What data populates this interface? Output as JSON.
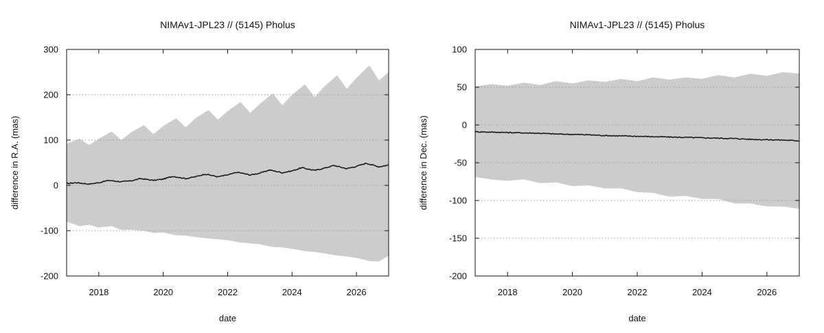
{
  "chart_data": [
    {
      "type": "area",
      "title": "NIMAv1-JPL23 // (5145) Pholus",
      "xlabel": "date",
      "ylabel": "difference in R.A. (mas)",
      "xlim": [
        2017.0,
        2027.0
      ],
      "ylim": [
        -200,
        300
      ],
      "xticks": [
        2018,
        2020,
        2022,
        2024,
        2026
      ],
      "yticks": [
        -200,
        -100,
        0,
        100,
        200,
        300
      ],
      "grid": "horizontal dotted",
      "series": [
        {
          "kind": "uncertainty-band",
          "x": [
            2017.0,
            2017.4,
            2017.7,
            2018.0,
            2018.4,
            2018.7,
            2019.0,
            2019.4,
            2019.7,
            2020.0,
            2020.4,
            2020.7,
            2021.0,
            2021.4,
            2021.7,
            2022.0,
            2022.4,
            2022.7,
            2023.0,
            2023.4,
            2023.7,
            2024.0,
            2024.4,
            2024.7,
            2025.0,
            2025.4,
            2025.7,
            2026.0,
            2026.4,
            2026.7,
            2027.0
          ],
          "upper": [
            92,
            103,
            89,
            103,
            119,
            100,
            117,
            133,
            113,
            131,
            148,
            128,
            148,
            166,
            145,
            164,
            184,
            160,
            180,
            203,
            177,
            200,
            223,
            195,
            218,
            243,
            213,
            237,
            265,
            232,
            250
          ],
          "lower": [
            -80,
            -90,
            -87,
            -93,
            -90,
            -98,
            -98,
            -100,
            -105,
            -104,
            -110,
            -111,
            -114,
            -117,
            -119,
            -121,
            -126,
            -128,
            -130,
            -136,
            -137,
            -140,
            -145,
            -147,
            -150,
            -155,
            -157,
            -160,
            -167,
            -168,
            -155
          ]
        },
        {
          "kind": "mean",
          "x": [
            2017.0,
            2017.3,
            2017.7,
            2018.0,
            2018.3,
            2018.7,
            2019.0,
            2019.3,
            2019.7,
            2020.0,
            2020.3,
            2020.7,
            2021.0,
            2021.3,
            2021.7,
            2022.0,
            2022.3,
            2022.7,
            2023.0,
            2023.3,
            2023.7,
            2024.0,
            2024.3,
            2024.7,
            2025.0,
            2025.3,
            2025.7,
            2026.0,
            2026.3,
            2026.7,
            2027.0
          ],
          "values": [
            4,
            6,
            3,
            6,
            11,
            8,
            10,
            15,
            11,
            14,
            20,
            15,
            19,
            25,
            19,
            23,
            29,
            23,
            27,
            34,
            28,
            32,
            39,
            33,
            38,
            44,
            37,
            42,
            49,
            41,
            45
          ]
        }
      ]
    },
    {
      "type": "area",
      "title": "NIMAv1-JPL23 // (5145) Pholus",
      "xlabel": "date",
      "ylabel": "difference in Dec. (mas)",
      "xlim": [
        2017.0,
        2027.0
      ],
      "ylim": [
        -200,
        100
      ],
      "xticks": [
        2018,
        2020,
        2022,
        2024,
        2026
      ],
      "yticks": [
        -200,
        -150,
        -100,
        -50,
        0,
        50,
        100
      ],
      "grid": "horizontal dotted",
      "series": [
        {
          "kind": "uncertainty-band",
          "x": [
            2017.0,
            2017.5,
            2018.0,
            2018.5,
            2019.0,
            2019.5,
            2020.0,
            2020.5,
            2021.0,
            2021.5,
            2022.0,
            2022.5,
            2023.0,
            2023.5,
            2024.0,
            2024.5,
            2025.0,
            2025.5,
            2026.0,
            2026.5,
            2027.0
          ],
          "upper": [
            51,
            54,
            52,
            56,
            53,
            58,
            55,
            59,
            57,
            61,
            58,
            63,
            60,
            63,
            61,
            66,
            63,
            68,
            65,
            70,
            68
          ],
          "lower": [
            -69,
            -72,
            -74,
            -72,
            -77,
            -76,
            -81,
            -80,
            -84,
            -84,
            -89,
            -90,
            -95,
            -94,
            -98,
            -98,
            -104,
            -104,
            -108,
            -108,
            -111
          ]
        },
        {
          "kind": "mean",
          "x": [
            2017.0,
            2017.5,
            2018.0,
            2018.5,
            2019.0,
            2019.5,
            2020.0,
            2020.5,
            2021.0,
            2021.5,
            2022.0,
            2022.5,
            2023.0,
            2023.5,
            2024.0,
            2024.5,
            2025.0,
            2025.5,
            2026.0,
            2026.5,
            2027.0
          ],
          "values": [
            -9,
            -9.5,
            -10,
            -10.5,
            -11,
            -12,
            -12.5,
            -13,
            -14,
            -14.5,
            -15,
            -15.5,
            -16,
            -16.5,
            -17,
            -17.5,
            -18,
            -19,
            -19.5,
            -20,
            -21
          ]
        }
      ]
    }
  ]
}
